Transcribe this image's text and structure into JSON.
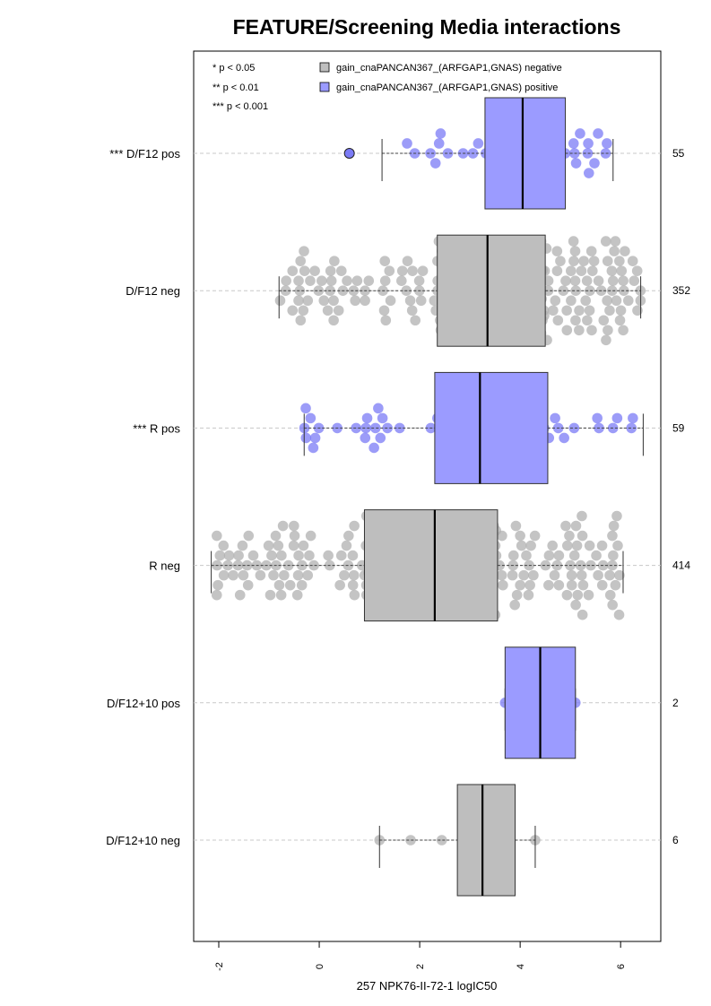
{
  "chart_data": {
    "type": "boxplot",
    "title": "FEATURE/Screening Media interactions",
    "xlabel": "257 NPK76-II-72-1 logIC50",
    "xlim": [
      -2.5,
      6.8
    ],
    "x_ticks": [
      -2,
      0,
      2,
      4,
      6
    ],
    "x_tick_labels": [
      "-2",
      "0",
      "2",
      "4",
      "6"
    ],
    "grid": "horizontal dashed lines at each group",
    "legend_position": "top",
    "significance_legend": [
      "* p < 0.05",
      "** p < 0.01",
      "*** p < 0.001"
    ],
    "series": [
      {
        "name": "gain_cnaPANCAN367_(ARFGAP1,GNAS) negative",
        "color": "#bebebe",
        "point_color": "#b0b0b0"
      },
      {
        "name": "gain_cnaPANCAN367_(ARFGAP1,GNAS) positive",
        "color": "#9b9bff",
        "point_color": "#7b7bf5"
      }
    ],
    "groups": [
      {
        "label": "*** D/F12 pos",
        "count": "55",
        "series": 1,
        "whisker_low": 1.25,
        "q1": 3.3,
        "median": 4.05,
        "q3": 4.9,
        "whisker_high": 5.85,
        "outliers": [
          0.6
        ]
      },
      {
        "label": "D/F12 neg",
        "count": "352",
        "series": 0,
        "whisker_low": -0.8,
        "q1": 2.35,
        "median": 3.35,
        "q3": 4.5,
        "whisker_high": 6.4,
        "outliers": []
      },
      {
        "label": "*** R pos",
        "count": "59",
        "series": 1,
        "whisker_low": -0.3,
        "q1": 2.3,
        "median": 3.2,
        "q3": 4.55,
        "whisker_high": 6.45,
        "outliers": []
      },
      {
        "label": "R neg",
        "count": "414",
        "series": 0,
        "whisker_low": -2.15,
        "q1": 0.9,
        "median": 2.3,
        "q3": 3.55,
        "whisker_high": 6.05,
        "outliers": []
      },
      {
        "label": "D/F12+10 pos",
        "count": "2",
        "series": 1,
        "whisker_low": 3.7,
        "q1": 3.7,
        "median": 4.4,
        "q3": 5.1,
        "whisker_high": 5.1,
        "outliers": []
      },
      {
        "label": "D/F12+10 neg",
        "count": "6",
        "series": 0,
        "whisker_low": 1.2,
        "q1": 2.75,
        "median": 3.25,
        "q3": 3.9,
        "whisker_high": 4.3,
        "outliers": []
      }
    ]
  }
}
